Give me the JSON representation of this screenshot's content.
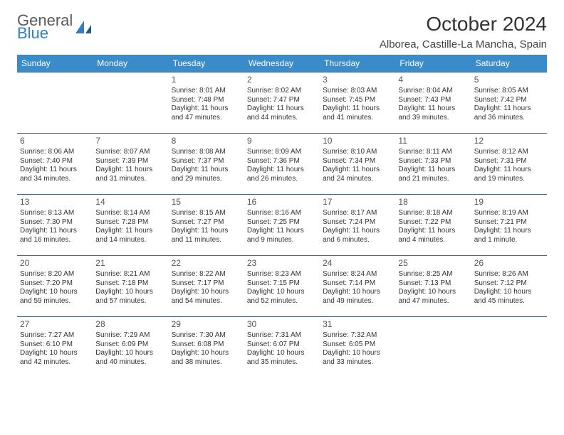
{
  "logo": {
    "general": "General",
    "blue": "Blue"
  },
  "header": {
    "month_title": "October 2024",
    "location": "Alborea, Castille-La Mancha, Spain"
  },
  "colors": {
    "header_bg": "#3a8bc9",
    "header_text": "#ffffff",
    "row_border": "#3a6a9a",
    "logo_gray": "#5a5a5a",
    "logo_blue": "#2f7fc1",
    "body_text": "#333333",
    "page_bg": "#ffffff"
  },
  "typography": {
    "title_fontsize": 28,
    "location_fontsize": 15,
    "th_fontsize": 12,
    "daynum_fontsize": 12,
    "cell_fontsize": 10,
    "font_family": "Arial"
  },
  "day_names": [
    "Sunday",
    "Monday",
    "Tuesday",
    "Wednesday",
    "Thursday",
    "Friday",
    "Saturday"
  ],
  "weeks": [
    [
      null,
      null,
      {
        "n": "1",
        "sr": "Sunrise: 8:01 AM",
        "ss": "Sunset: 7:48 PM",
        "dl": "Daylight: 11 hours and 47 minutes."
      },
      {
        "n": "2",
        "sr": "Sunrise: 8:02 AM",
        "ss": "Sunset: 7:47 PM",
        "dl": "Daylight: 11 hours and 44 minutes."
      },
      {
        "n": "3",
        "sr": "Sunrise: 8:03 AM",
        "ss": "Sunset: 7:45 PM",
        "dl": "Daylight: 11 hours and 41 minutes."
      },
      {
        "n": "4",
        "sr": "Sunrise: 8:04 AM",
        "ss": "Sunset: 7:43 PM",
        "dl": "Daylight: 11 hours and 39 minutes."
      },
      {
        "n": "5",
        "sr": "Sunrise: 8:05 AM",
        "ss": "Sunset: 7:42 PM",
        "dl": "Daylight: 11 hours and 36 minutes."
      }
    ],
    [
      {
        "n": "6",
        "sr": "Sunrise: 8:06 AM",
        "ss": "Sunset: 7:40 PM",
        "dl": "Daylight: 11 hours and 34 minutes."
      },
      {
        "n": "7",
        "sr": "Sunrise: 8:07 AM",
        "ss": "Sunset: 7:39 PM",
        "dl": "Daylight: 11 hours and 31 minutes."
      },
      {
        "n": "8",
        "sr": "Sunrise: 8:08 AM",
        "ss": "Sunset: 7:37 PM",
        "dl": "Daylight: 11 hours and 29 minutes."
      },
      {
        "n": "9",
        "sr": "Sunrise: 8:09 AM",
        "ss": "Sunset: 7:36 PM",
        "dl": "Daylight: 11 hours and 26 minutes."
      },
      {
        "n": "10",
        "sr": "Sunrise: 8:10 AM",
        "ss": "Sunset: 7:34 PM",
        "dl": "Daylight: 11 hours and 24 minutes."
      },
      {
        "n": "11",
        "sr": "Sunrise: 8:11 AM",
        "ss": "Sunset: 7:33 PM",
        "dl": "Daylight: 11 hours and 21 minutes."
      },
      {
        "n": "12",
        "sr": "Sunrise: 8:12 AM",
        "ss": "Sunset: 7:31 PM",
        "dl": "Daylight: 11 hours and 19 minutes."
      }
    ],
    [
      {
        "n": "13",
        "sr": "Sunrise: 8:13 AM",
        "ss": "Sunset: 7:30 PM",
        "dl": "Daylight: 11 hours and 16 minutes."
      },
      {
        "n": "14",
        "sr": "Sunrise: 8:14 AM",
        "ss": "Sunset: 7:28 PM",
        "dl": "Daylight: 11 hours and 14 minutes."
      },
      {
        "n": "15",
        "sr": "Sunrise: 8:15 AM",
        "ss": "Sunset: 7:27 PM",
        "dl": "Daylight: 11 hours and 11 minutes."
      },
      {
        "n": "16",
        "sr": "Sunrise: 8:16 AM",
        "ss": "Sunset: 7:25 PM",
        "dl": "Daylight: 11 hours and 9 minutes."
      },
      {
        "n": "17",
        "sr": "Sunrise: 8:17 AM",
        "ss": "Sunset: 7:24 PM",
        "dl": "Daylight: 11 hours and 6 minutes."
      },
      {
        "n": "18",
        "sr": "Sunrise: 8:18 AM",
        "ss": "Sunset: 7:22 PM",
        "dl": "Daylight: 11 hours and 4 minutes."
      },
      {
        "n": "19",
        "sr": "Sunrise: 8:19 AM",
        "ss": "Sunset: 7:21 PM",
        "dl": "Daylight: 11 hours and 1 minute."
      }
    ],
    [
      {
        "n": "20",
        "sr": "Sunrise: 8:20 AM",
        "ss": "Sunset: 7:20 PM",
        "dl": "Daylight: 10 hours and 59 minutes."
      },
      {
        "n": "21",
        "sr": "Sunrise: 8:21 AM",
        "ss": "Sunset: 7:18 PM",
        "dl": "Daylight: 10 hours and 57 minutes."
      },
      {
        "n": "22",
        "sr": "Sunrise: 8:22 AM",
        "ss": "Sunset: 7:17 PM",
        "dl": "Daylight: 10 hours and 54 minutes."
      },
      {
        "n": "23",
        "sr": "Sunrise: 8:23 AM",
        "ss": "Sunset: 7:15 PM",
        "dl": "Daylight: 10 hours and 52 minutes."
      },
      {
        "n": "24",
        "sr": "Sunrise: 8:24 AM",
        "ss": "Sunset: 7:14 PM",
        "dl": "Daylight: 10 hours and 49 minutes."
      },
      {
        "n": "25",
        "sr": "Sunrise: 8:25 AM",
        "ss": "Sunset: 7:13 PM",
        "dl": "Daylight: 10 hours and 47 minutes."
      },
      {
        "n": "26",
        "sr": "Sunrise: 8:26 AM",
        "ss": "Sunset: 7:12 PM",
        "dl": "Daylight: 10 hours and 45 minutes."
      }
    ],
    [
      {
        "n": "27",
        "sr": "Sunrise: 7:27 AM",
        "ss": "Sunset: 6:10 PM",
        "dl": "Daylight: 10 hours and 42 minutes."
      },
      {
        "n": "28",
        "sr": "Sunrise: 7:29 AM",
        "ss": "Sunset: 6:09 PM",
        "dl": "Daylight: 10 hours and 40 minutes."
      },
      {
        "n": "29",
        "sr": "Sunrise: 7:30 AM",
        "ss": "Sunset: 6:08 PM",
        "dl": "Daylight: 10 hours and 38 minutes."
      },
      {
        "n": "30",
        "sr": "Sunrise: 7:31 AM",
        "ss": "Sunset: 6:07 PM",
        "dl": "Daylight: 10 hours and 35 minutes."
      },
      {
        "n": "31",
        "sr": "Sunrise: 7:32 AM",
        "ss": "Sunset: 6:05 PM",
        "dl": "Daylight: 10 hours and 33 minutes."
      },
      null,
      null
    ]
  ]
}
